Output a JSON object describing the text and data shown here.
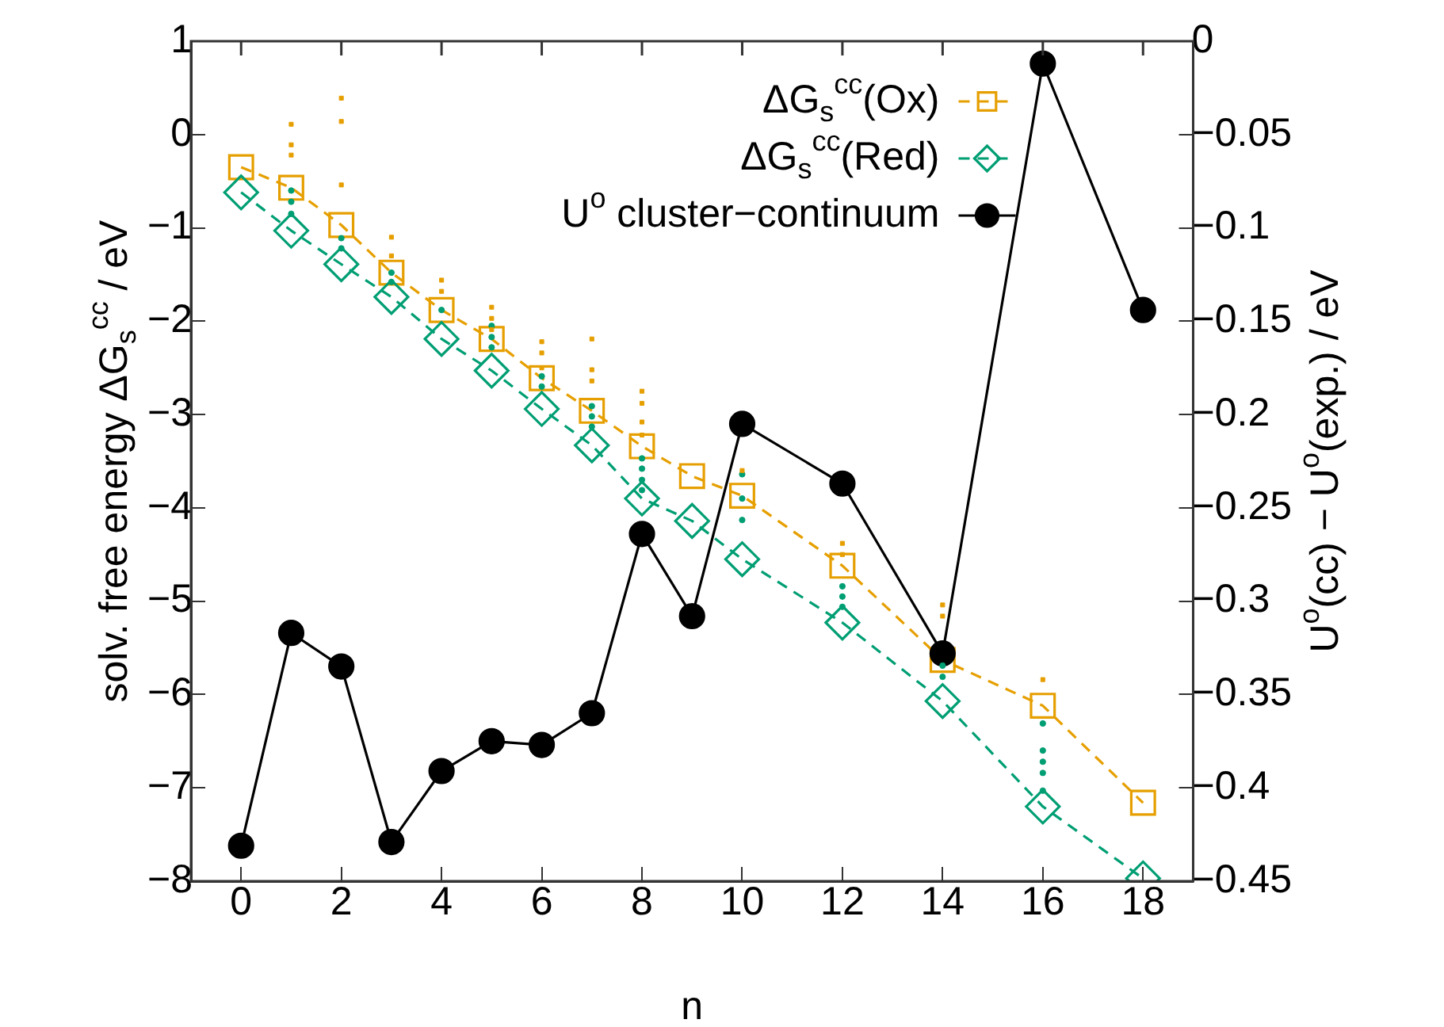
{
  "chart_data": {
    "type": "line",
    "xlabel": "n",
    "ylabel": "solv. free energy ΔG$_{s}$$^{cc}$ / eV",
    "y2label": "U$^{o}$(cc) − U$^{o}$(exp.) / eV",
    "x": [
      0,
      1,
      2,
      3,
      4,
      5,
      6,
      7,
      8,
      9,
      10,
      12,
      14,
      16,
      18
    ],
    "xlim": [
      -1,
      19
    ],
    "xticks": [
      0,
      2,
      4,
      6,
      8,
      10,
      12,
      14,
      16,
      18
    ],
    "ylim": [
      -8,
      1
    ],
    "yticks": [
      -8,
      -7,
      -6,
      -5,
      -4,
      -3,
      -2,
      -1,
      0,
      1
    ],
    "y2lim": [
      -0.45,
      0
    ],
    "y2ticks": [
      -0.45,
      -0.4,
      -0.35,
      -0.3,
      -0.25,
      -0.2,
      -0.15,
      -0.1,
      -0.05,
      0
    ],
    "grid": false,
    "legend": "top right",
    "series": [
      {
        "type": "scatter",
        "color": "#e69f00",
        "marker": "square",
        "x": [
          1,
          1,
          1,
          2,
          2,
          2,
          3,
          3,
          4,
          4,
          5,
          5,
          5,
          6,
          6,
          6,
          7,
          7,
          7,
          8,
          8,
          8,
          8,
          10,
          12,
          12,
          14,
          14,
          16
        ],
        "values": [
          0.11,
          -0.11,
          -0.22,
          0.39,
          0.14,
          -0.54,
          -1.1,
          -1.3,
          -1.56,
          -1.68,
          -1.85,
          -1.97,
          -2.09,
          -2.22,
          -2.34,
          -2.5,
          -2.19,
          -2.52,
          -2.64,
          -2.75,
          -2.88,
          -3.08,
          -3.22,
          -3.6,
          -4.38,
          -4.5,
          -5.04,
          -5.16,
          -5.84
        ]
      },
      {
        "type": "scatter",
        "color": "#009e73",
        "marker": "circle",
        "x": [
          1,
          1,
          1,
          2,
          2,
          3,
          3,
          4,
          5,
          5,
          5,
          6,
          6,
          7,
          7,
          7,
          8,
          8,
          8,
          8,
          10,
          10,
          10,
          12,
          12,
          12,
          14,
          14,
          16,
          16,
          16,
          16,
          16
        ],
        "values": [
          -0.6,
          -0.72,
          -0.85,
          -1.11,
          -1.22,
          -1.48,
          -1.58,
          -1.88,
          -2.05,
          -2.17,
          -2.28,
          -2.59,
          -2.7,
          -2.91,
          -3.02,
          -3.13,
          -3.47,
          -3.58,
          -3.7,
          -3.81,
          -3.64,
          -3.9,
          -4.13,
          -4.84,
          -4.95,
          -5.06,
          -5.69,
          -5.81,
          -6.31,
          -6.6,
          -6.72,
          -6.84,
          -7.03
        ]
      },
      {
        "name": "ΔG$_{s}$$^{cc}$(Ox)",
        "color": "#e69f00",
        "marker": "square",
        "line_style": "dashed",
        "values": [
          -0.35,
          -0.57,
          -0.97,
          -1.48,
          -1.88,
          -2.19,
          -2.61,
          -2.96,
          -3.34,
          -3.66,
          -3.87,
          -4.62,
          -5.63,
          -6.12,
          -7.16
        ]
      },
      {
        "name": "ΔG$_{s}$$^{cc}$(Red)",
        "color": "#009e73",
        "marker": "diamond",
        "line_style": "dashed",
        "values": [
          -0.62,
          -1.03,
          -1.39,
          -1.74,
          -2.19,
          -2.53,
          -2.94,
          -3.33,
          -3.9,
          -4.14,
          -4.55,
          -5.23,
          -6.07,
          -7.2,
          -7.97
        ]
      },
      {
        "name": "U$^{o}$ cluster−continuum",
        "color": "#000000",
        "marker": "circle",
        "line_style": "solid",
        "axis": "y2",
        "values": [
          -0.431,
          -0.317,
          -0.335,
          -0.429,
          -0.391,
          -0.375,
          -0.377,
          -0.36,
          -0.264,
          -0.308,
          -0.205,
          -0.237,
          -0.328,
          -0.012,
          -0.144
        ]
      }
    ]
  }
}
